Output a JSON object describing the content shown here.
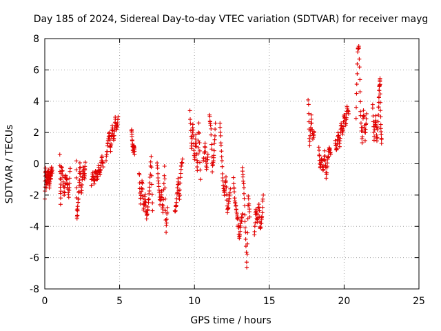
{
  "chart_data": {
    "type": "scatter",
    "title": "Day 185 of 2024, Sidereal Day-to-day VTEC variation (SDTVAR) for receiver mayg",
    "xlabel": "GPS time / hours",
    "ylabel": "SDTVAR / TECUs",
    "xlim": [
      0,
      25
    ],
    "ylim": [
      -8,
      8
    ],
    "xticks": [
      0,
      5,
      10,
      15,
      20,
      25
    ],
    "yticks": [
      -8,
      -6,
      -4,
      -2,
      0,
      2,
      4,
      6,
      8
    ],
    "xtick_labels": [
      "0",
      "5",
      "10",
      "15",
      "20",
      "25"
    ],
    "ytick_labels": [
      "-8",
      "-6",
      "-4",
      "-2",
      "0",
      "2",
      "4",
      "6",
      "8"
    ],
    "grid": true,
    "marker": "plus",
    "series_color": "#e00000",
    "segments": [
      {
        "x0": 0.0,
        "x1": 0.5,
        "pts": [
          [
            0.0,
            -2.2
          ],
          [
            0.05,
            -0.2
          ],
          [
            0.1,
            -1.5
          ],
          [
            0.15,
            -0.5
          ],
          [
            0.2,
            -1.2
          ],
          [
            0.25,
            -0.3
          ],
          [
            0.3,
            -1.6
          ],
          [
            0.35,
            -0.6
          ],
          [
            0.4,
            -1.0
          ],
          [
            0.45,
            -0.3
          ],
          [
            0.5,
            -0.6
          ]
        ]
      },
      {
        "x0": 1.0,
        "x1": 1.7,
        "pts": [
          [
            1.0,
            0.5
          ],
          [
            1.05,
            -2.5
          ],
          [
            1.1,
            -0.2
          ],
          [
            1.2,
            -0.6
          ],
          [
            1.3,
            -2.0
          ],
          [
            1.4,
            -0.8
          ],
          [
            1.5,
            -1.2
          ],
          [
            1.6,
            -2.1
          ],
          [
            1.7,
            -0.3
          ]
        ]
      },
      {
        "x0": 2.1,
        "x1": 2.7,
        "pts": [
          [
            2.1,
            0.3
          ],
          [
            2.15,
            -3.6
          ],
          [
            2.2,
            -2.8
          ],
          [
            2.3,
            -1.5
          ],
          [
            2.35,
            0.1
          ],
          [
            2.45,
            -1.9
          ],
          [
            2.55,
            -0.2
          ],
          [
            2.65,
            -1.0
          ],
          [
            2.7,
            0.1
          ]
        ]
      },
      {
        "x0": 3.1,
        "x1": 3.9,
        "pts": [
          [
            3.1,
            -1.4
          ],
          [
            3.2,
            -0.6
          ],
          [
            3.3,
            -1.2
          ],
          [
            3.4,
            -0.4
          ],
          [
            3.5,
            -1.0
          ],
          [
            3.6,
            -0.2
          ],
          [
            3.7,
            -0.7
          ],
          [
            3.8,
            0.5
          ],
          [
            3.9,
            -0.2
          ]
        ]
      },
      {
        "x0": 4.1,
        "x1": 4.9,
        "pts": [
          [
            4.1,
            0.3
          ],
          [
            4.2,
            1.2
          ],
          [
            4.3,
            2.0
          ],
          [
            4.4,
            0.8
          ],
          [
            4.5,
            2.5
          ],
          [
            4.6,
            1.4
          ],
          [
            4.7,
            2.9
          ],
          [
            4.8,
            2.2
          ],
          [
            4.9,
            3.0
          ]
        ]
      },
      {
        "x0": 5.8,
        "x1": 6.0,
        "pts": [
          [
            5.8,
            2.2
          ],
          [
            5.85,
            1.4
          ],
          [
            5.9,
            0.8
          ],
          [
            5.95,
            1.2
          ],
          [
            6.0,
            0.6
          ]
        ]
      },
      {
        "x0": 6.3,
        "x1": 7.2,
        "pts": [
          [
            6.3,
            -0.5
          ],
          [
            6.4,
            -2.5
          ],
          [
            6.5,
            -1.0
          ],
          [
            6.6,
            -3.0
          ],
          [
            6.7,
            -2.0
          ],
          [
            6.8,
            -3.5
          ],
          [
            6.9,
            -2.8
          ],
          [
            7.0,
            -1.5
          ],
          [
            7.1,
            0.4
          ],
          [
            7.2,
            -3.0
          ]
        ]
      },
      {
        "x0": 7.5,
        "x1": 8.2,
        "pts": [
          [
            7.5,
            0.0
          ],
          [
            7.6,
            -1.2
          ],
          [
            7.7,
            -2.5
          ],
          [
            7.8,
            -1.8
          ],
          [
            7.9,
            -3.2
          ],
          [
            8.0,
            -0.2
          ],
          [
            8.1,
            -4.3
          ],
          [
            8.2,
            -2.8
          ]
        ]
      },
      {
        "x0": 8.7,
        "x1": 9.2,
        "pts": [
          [
            8.7,
            -3.1
          ],
          [
            8.8,
            -2.5
          ],
          [
            8.9,
            -1.0
          ],
          [
            9.0,
            -2.2
          ],
          [
            9.1,
            -0.3
          ],
          [
            9.2,
            0.3
          ]
        ]
      },
      {
        "x0": 9.7,
        "x1": 10.4,
        "pts": [
          [
            9.7,
            3.3
          ],
          [
            9.8,
            1.0
          ],
          [
            9.9,
            2.5
          ],
          [
            10.0,
            0.2
          ],
          [
            10.1,
            1.8
          ],
          [
            10.2,
            -0.5
          ],
          [
            10.3,
            2.6
          ],
          [
            10.4,
            -1.0
          ]
        ]
      },
      {
        "x0": 10.6,
        "x1": 10.9,
        "pts": [
          [
            10.6,
            0.1
          ],
          [
            10.7,
            1.2
          ],
          [
            10.8,
            -0.3
          ],
          [
            10.9,
            0.6
          ]
        ]
      },
      {
        "x0": 11.0,
        "x1": 11.4,
        "pts": [
          [
            11.0,
            3.1
          ],
          [
            11.1,
            2.2
          ],
          [
            11.2,
            -0.4
          ],
          [
            11.3,
            0.5
          ],
          [
            11.4,
            2.6
          ]
        ]
      },
      {
        "x0": 11.7,
        "x1": 12.4,
        "pts": [
          [
            11.7,
            2.6
          ],
          [
            11.8,
            0.8
          ],
          [
            11.9,
            -1.2
          ],
          [
            12.0,
            -2.0
          ],
          [
            12.1,
            -0.8
          ],
          [
            12.2,
            -3.1
          ],
          [
            12.3,
            -2.5
          ],
          [
            12.4,
            -1.6
          ]
        ]
      },
      {
        "x0": 12.6,
        "x1": 13.2,
        "pts": [
          [
            12.6,
            -1.0
          ],
          [
            12.7,
            -2.3
          ],
          [
            12.8,
            -3.0
          ],
          [
            12.9,
            -3.6
          ],
          [
            13.0,
            -4.8
          ],
          [
            13.1,
            -3.8
          ],
          [
            13.2,
            -3.2
          ]
        ]
      },
      {
        "x0": 13.2,
        "x1": 13.7,
        "pts": [
          [
            13.2,
            -0.2
          ],
          [
            13.3,
            -1.5
          ],
          [
            13.4,
            -4.0
          ],
          [
            13.5,
            -6.6
          ],
          [
            13.6,
            -2.0
          ],
          [
            13.7,
            -3.4
          ]
        ]
      },
      {
        "x0": 14.0,
        "x1": 14.6,
        "pts": [
          [
            14.0,
            -4.5
          ],
          [
            14.1,
            -2.8
          ],
          [
            14.2,
            -3.8
          ],
          [
            14.3,
            -2.5
          ],
          [
            14.4,
            -4.2
          ],
          [
            14.5,
            -3.5
          ],
          [
            14.6,
            -2.0
          ]
        ]
      },
      {
        "x0": 17.6,
        "x1": 18.0,
        "pts": [
          [
            17.6,
            4.2
          ],
          [
            17.7,
            1.2
          ],
          [
            17.8,
            3.0
          ],
          [
            17.9,
            1.6
          ],
          [
            18.0,
            2.0
          ]
        ]
      },
      {
        "x0": 18.3,
        "x1": 19.1,
        "pts": [
          [
            18.3,
            1.0
          ],
          [
            18.4,
            -0.2
          ],
          [
            18.5,
            0.4
          ],
          [
            18.6,
            -0.5
          ],
          [
            18.7,
            0.8
          ],
          [
            18.8,
            -0.8
          ],
          [
            18.9,
            0.2
          ],
          [
            19.0,
            1.0
          ],
          [
            19.1,
            0.6
          ]
        ]
      },
      {
        "x0": 19.4,
        "x1": 20.3,
        "pts": [
          [
            19.4,
            1.5
          ],
          [
            19.5,
            0.8
          ],
          [
            19.6,
            2.0
          ],
          [
            19.7,
            1.2
          ],
          [
            19.8,
            2.6
          ],
          [
            19.9,
            1.8
          ],
          [
            20.0,
            3.2
          ],
          [
            20.1,
            2.5
          ],
          [
            20.2,
            3.6
          ],
          [
            20.3,
            3.2
          ]
        ]
      },
      {
        "x0": 20.8,
        "x1": 21.5,
        "pts": [
          [
            20.8,
            3.0
          ],
          [
            20.9,
            7.2
          ],
          [
            21.0,
            7.5
          ],
          [
            21.1,
            3.3
          ],
          [
            21.2,
            1.4
          ],
          [
            21.3,
            3.5
          ],
          [
            21.4,
            1.6
          ],
          [
            21.5,
            3.2
          ]
        ]
      },
      {
        "x0": 21.9,
        "x1": 22.5,
        "pts": [
          [
            21.9,
            3.8
          ],
          [
            22.0,
            1.6
          ],
          [
            22.1,
            3.0
          ],
          [
            22.2,
            1.4
          ],
          [
            22.3,
            3.5
          ],
          [
            22.35,
            4.8
          ],
          [
            22.4,
            5.5
          ],
          [
            22.45,
            2.4
          ],
          [
            22.5,
            1.3
          ]
        ]
      }
    ]
  }
}
